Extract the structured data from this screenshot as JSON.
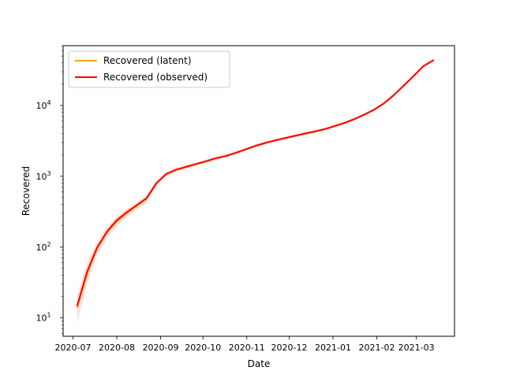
{
  "chart_data": {
    "type": "line",
    "xlabel": "Date",
    "ylabel": "Recovered",
    "yscale": "log",
    "xlim": [
      "2020-06-24",
      "2021-03-28"
    ],
    "ylim": [
      5.5,
      70000
    ],
    "grid": false,
    "legend_position": "top-left",
    "x_ticks": [
      "2020-07",
      "2020-08",
      "2020-09",
      "2020-10",
      "2020-11",
      "2020-12",
      "2021-01",
      "2021-02",
      "2021-03"
    ],
    "y_ticks": [
      {
        "value": 10,
        "mantissa": "10",
        "exponent": "1"
      },
      {
        "value": 100,
        "mantissa": "10",
        "exponent": "2"
      },
      {
        "value": 1000,
        "mantissa": "10",
        "exponent": "3"
      },
      {
        "value": 10000,
        "mantissa": "10",
        "exponent": "4"
      }
    ],
    "series": [
      {
        "name": "Recovered (latent)",
        "color": "#ffa500",
        "x": [
          "2020-07-04",
          "2020-07-11",
          "2020-07-18",
          "2020-07-25",
          "2020-08-01",
          "2020-08-08",
          "2020-08-15",
          "2020-08-22",
          "2020-08-29",
          "2020-09-05",
          "2020-09-12",
          "2020-09-19",
          "2020-09-26",
          "2020-10-03",
          "2020-10-10",
          "2020-10-17",
          "2020-10-24",
          "2020-10-31",
          "2020-11-07",
          "2020-11-14",
          "2020-11-21",
          "2020-11-28",
          "2020-12-05",
          "2020-12-12",
          "2020-12-19",
          "2020-12-26",
          "2021-01-02",
          "2021-01-09",
          "2021-01-16",
          "2021-01-23",
          "2021-01-30",
          "2021-02-06",
          "2021-02-13",
          "2021-02-20",
          "2021-02-27",
          "2021-03-06",
          "2021-03-13"
        ],
        "values": [
          14,
          42,
          95,
          160,
          230,
          300,
          380,
          480,
          790,
          1070,
          1230,
          1350,
          1480,
          1620,
          1790,
          1920,
          2130,
          2380,
          2680,
          2950,
          3200,
          3450,
          3720,
          4000,
          4280,
          4620,
          5100,
          5650,
          6400,
          7400,
          8700,
          10700,
          14000,
          19000,
          26000,
          36000,
          43000
        ]
      },
      {
        "name": "Recovered (observed)",
        "color": "#ff0000",
        "x": [
          "2020-07-04",
          "2020-07-11",
          "2020-07-18",
          "2020-07-25",
          "2020-08-01",
          "2020-08-08",
          "2020-08-15",
          "2020-08-22",
          "2020-08-29",
          "2020-09-05",
          "2020-09-12",
          "2020-09-19",
          "2020-09-26",
          "2020-10-03",
          "2020-10-10",
          "2020-10-17",
          "2020-10-24",
          "2020-10-31",
          "2020-11-07",
          "2020-11-14",
          "2020-11-21",
          "2020-11-28",
          "2020-12-05",
          "2020-12-12",
          "2020-12-19",
          "2020-12-26",
          "2021-01-02",
          "2021-01-09",
          "2021-01-16",
          "2021-01-23",
          "2021-01-30",
          "2021-02-06",
          "2021-02-13",
          "2021-02-20",
          "2021-02-27",
          "2021-03-06",
          "2021-03-13"
        ],
        "values": [
          15,
          45,
          98,
          165,
          240,
          310,
          390,
          490,
          800,
          1080,
          1240,
          1360,
          1490,
          1630,
          1800,
          1930,
          2140,
          2390,
          2690,
          2960,
          3210,
          3460,
          3730,
          4010,
          4290,
          4630,
          5110,
          5660,
          6410,
          7410,
          8710,
          10710,
          14010,
          19010,
          26010,
          36010,
          43500
        ],
        "band_lower": [
          8.5,
          30,
          75,
          135,
          200,
          265,
          335,
          420,
          720,
          1000,
          1160,
          1270,
          1390,
          1530,
          1690,
          1810,
          2010,
          2250,
          2540,
          2800,
          3040,
          3280,
          3540,
          3810,
          4080,
          4400,
          4860,
          5380,
          6090,
          7050,
          8290,
          10200,
          13350,
          18100,
          24800,
          34300,
          41500
        ],
        "band_upper": [
          22,
          60,
          118,
          192,
          270,
          345,
          430,
          535,
          860,
          1150,
          1320,
          1445,
          1580,
          1720,
          1900,
          2040,
          2260,
          2520,
          2830,
          3110,
          3370,
          3630,
          3910,
          4200,
          4490,
          4850,
          5350,
          5930,
          6720,
          7770,
          9130,
          11200,
          14650,
          19900,
          27200,
          37700,
          45500
        ]
      }
    ]
  }
}
